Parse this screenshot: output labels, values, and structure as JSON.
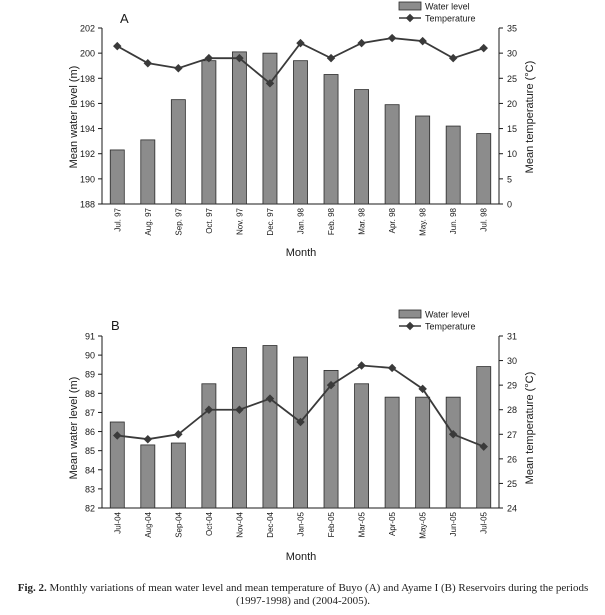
{
  "caption": {
    "label": "Fig. 2.",
    "text": "Monthly variations of mean water level and mean temperature of Buyo (A) and Ayame I (B) Reservoirs during the periods (1997-1998) and (2004-2005)."
  },
  "colors": {
    "bar_fill": "#8c8c8c",
    "bar_stroke": "#2a2a2a",
    "line": "#3a3a3a",
    "axis": "#1a1a1a"
  },
  "chart_data": [
    {
      "type": "bar",
      "panel_label": "A",
      "categories": [
        "Jul. 97",
        "Aug. 97",
        "Sep. 97",
        "Oct. 97",
        "Nov. 97",
        "Dec. 97",
        "Jan. 98",
        "Feb. 98",
        "Mar. 98",
        "Apr. 98",
        "May. 98",
        "Jun. 98",
        "Jul. 98"
      ],
      "xlabel": "Month",
      "ylabel": "Mean water level (m)",
      "y2label": "Mean temperature (°C)",
      "ylim": [
        188,
        202
      ],
      "yticks": [
        "188",
        "190",
        "192",
        "194",
        "196",
        "198",
        "200",
        "202"
      ],
      "y2lim": [
        0,
        35
      ],
      "y2ticks": [
        "0",
        "5",
        "10",
        "15",
        "20",
        "25",
        "30",
        "35"
      ],
      "legend_position": "top-right",
      "series": [
        {
          "name": "Water level",
          "kind": "bar",
          "axis": "left",
          "values": [
            192.3,
            193.1,
            196.3,
            199.4,
            200.1,
            200.0,
            199.4,
            198.3,
            197.1,
            195.9,
            195.0,
            194.2,
            193.6
          ]
        },
        {
          "name": "Temperature",
          "kind": "line",
          "axis": "right",
          "values": [
            31.4,
            28.0,
            27.0,
            29.0,
            29.0,
            24.0,
            32.0,
            29.0,
            32.0,
            33.0,
            32.4,
            29.0,
            31.0
          ]
        }
      ]
    },
    {
      "type": "bar",
      "panel_label": "B",
      "categories": [
        "Jul-04",
        "Aug-04",
        "Sep-04",
        "Oct-04",
        "Nov-04",
        "Dec-04",
        "Jan-05",
        "Feb-05",
        "Mar-05",
        "Apr-05",
        "May-05",
        "Jun-05",
        "Jul-05"
      ],
      "xlabel": "Month",
      "ylabel": "Mean water level (m)",
      "y2label": "Mean temperature (°C)",
      "ylim": [
        82,
        91
      ],
      "yticks": [
        "82",
        "83",
        "84",
        "85",
        "86",
        "87",
        "88",
        "89",
        "90",
        "91"
      ],
      "y2lim": [
        24,
        31
      ],
      "y2ticks": [
        "24",
        "25",
        "26",
        "27",
        "28",
        "29",
        "30",
        "31"
      ],
      "legend_position": "top-right",
      "series": [
        {
          "name": "Water level",
          "kind": "bar",
          "axis": "left",
          "values": [
            86.5,
            85.3,
            85.4,
            88.5,
            90.4,
            90.5,
            89.9,
            89.2,
            88.5,
            87.8,
            87.8,
            87.8,
            89.4
          ]
        },
        {
          "name": "Temperature",
          "kind": "line",
          "axis": "right",
          "values": [
            26.95,
            26.8,
            27.0,
            28.0,
            28.0,
            28.45,
            27.5,
            29.0,
            29.8,
            29.7,
            28.85,
            27.0,
            26.5
          ]
        }
      ]
    }
  ]
}
